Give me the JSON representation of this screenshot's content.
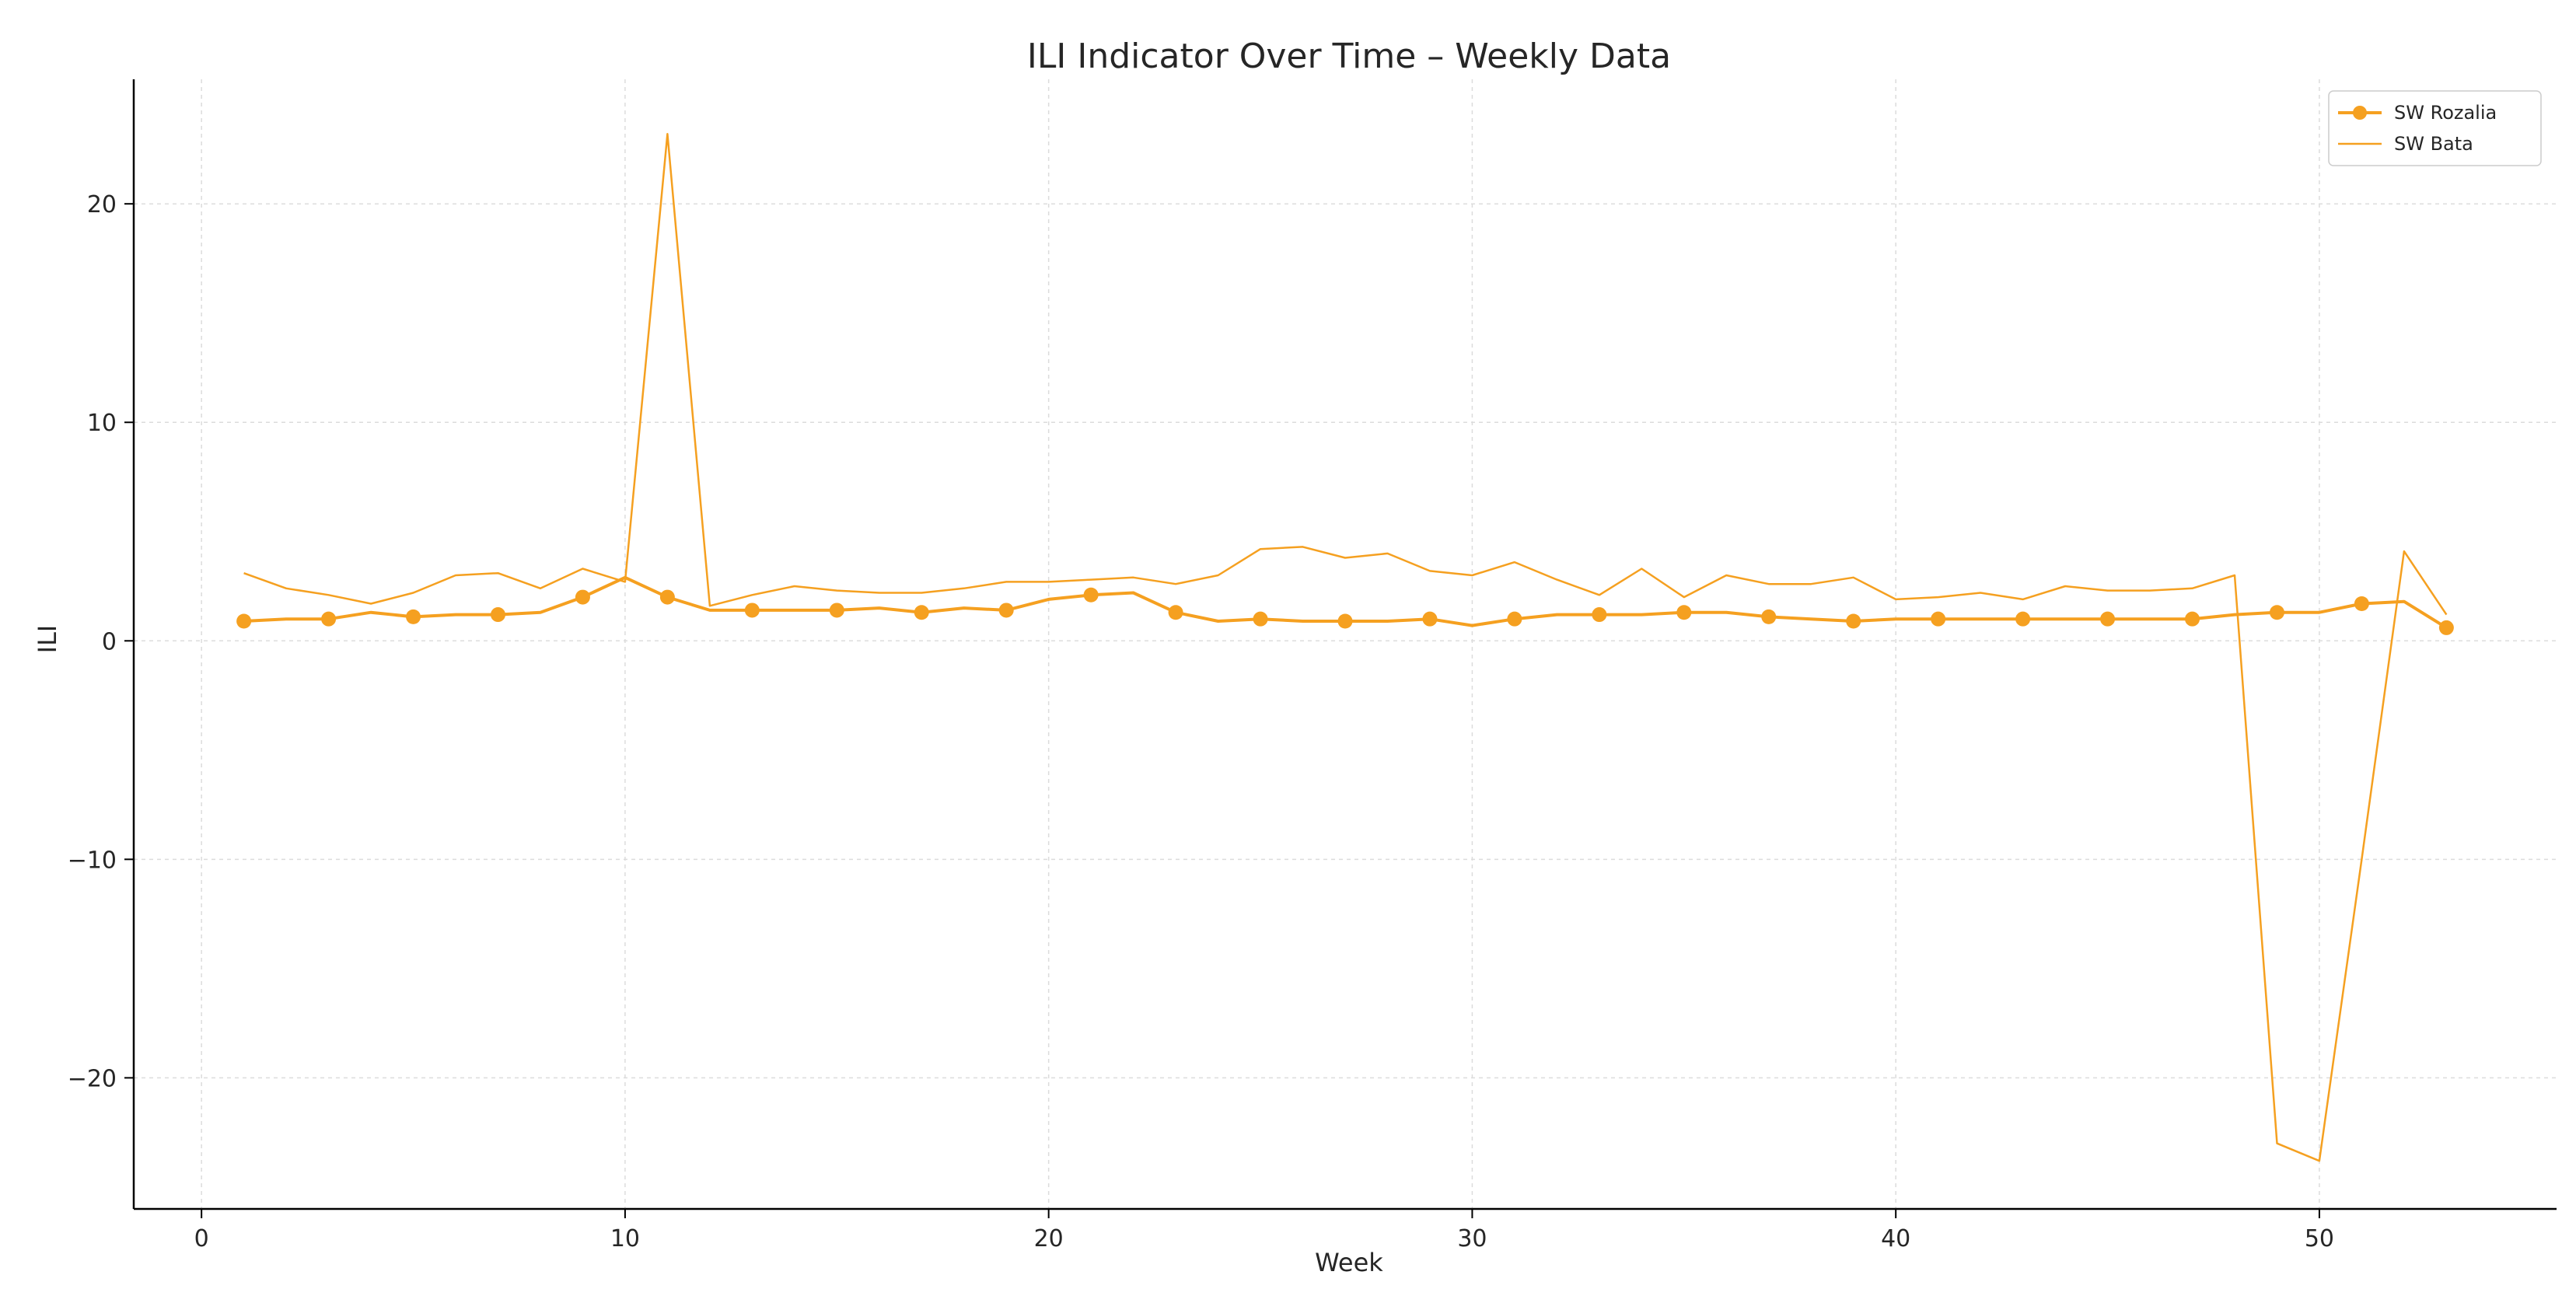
{
  "chart_data": {
    "type": "line",
    "title": "ILI Indicator Over Time – Weekly Data",
    "xlabel": "Week",
    "ylabel": "ILI",
    "xlim": [
      -1.6,
      55.6
    ],
    "ylim": [
      -26,
      25.7
    ],
    "xticks": [
      0,
      10,
      20,
      30,
      40,
      50
    ],
    "yticks": [
      -20,
      -10,
      0,
      10,
      20
    ],
    "grid": true,
    "legend_position": "top-right",
    "colors": {
      "series": "#f5a020",
      "grid": "#dcdcdc",
      "axis": "#000000"
    },
    "series": [
      {
        "name": "SW Rozalia",
        "marker": "circle",
        "marker_every": 2,
        "x": [
          1,
          2,
          3,
          4,
          5,
          6,
          7,
          8,
          9,
          10,
          11,
          12,
          13,
          14,
          15,
          16,
          17,
          18,
          19,
          20,
          21,
          22,
          23,
          24,
          25,
          26,
          27,
          28,
          29,
          30,
          31,
          32,
          33,
          34,
          35,
          36,
          37,
          38,
          39,
          40,
          41,
          42,
          43,
          44,
          45,
          46,
          47,
          48,
          49,
          50,
          51,
          52,
          53
        ],
        "values": [
          0.9,
          1.0,
          1.0,
          1.3,
          1.1,
          1.2,
          1.2,
          1.3,
          2.0,
          2.9,
          2.0,
          1.4,
          1.4,
          1.4,
          1.4,
          1.5,
          1.3,
          1.5,
          1.4,
          1.9,
          2.1,
          2.2,
          1.3,
          0.9,
          1.0,
          0.9,
          0.9,
          0.9,
          1.0,
          0.7,
          1.0,
          1.2,
          1.2,
          1.2,
          1.3,
          1.3,
          1.1,
          1.0,
          0.9,
          1.0,
          1.0,
          1.0,
          1.0,
          1.0,
          1.0,
          1.0,
          1.0,
          1.2,
          1.3,
          1.3,
          1.7,
          1.8,
          0.6
        ]
      },
      {
        "name": "SW Bata",
        "marker": "none",
        "x": [
          1,
          2,
          3,
          4,
          5,
          6,
          7,
          8,
          9,
          10,
          11,
          12,
          13,
          14,
          15,
          16,
          17,
          18,
          19,
          20,
          21,
          22,
          23,
          24,
          25,
          26,
          27,
          28,
          29,
          30,
          31,
          32,
          33,
          34,
          35,
          36,
          37,
          38,
          39,
          40,
          41,
          42,
          43,
          44,
          45,
          46,
          47,
          48,
          49,
          50,
          51,
          52,
          53
        ],
        "values": [
          3.1,
          2.4,
          2.1,
          1.7,
          2.2,
          3.0,
          3.1,
          2.4,
          3.3,
          2.7,
          23.2,
          1.6,
          2.1,
          2.5,
          2.3,
          2.2,
          2.2,
          2.4,
          2.7,
          2.7,
          2.8,
          2.9,
          2.6,
          3.0,
          4.2,
          4.3,
          3.8,
          4.0,
          3.2,
          3.0,
          3.6,
          2.8,
          2.1,
          3.3,
          2.0,
          3.0,
          2.6,
          2.6,
          2.9,
          1.9,
          2.0,
          2.2,
          1.9,
          2.5,
          2.3,
          2.3,
          2.4,
          3.0,
          -23.0,
          -23.8,
          -10.0,
          4.1,
          1.2
        ]
      }
    ]
  }
}
